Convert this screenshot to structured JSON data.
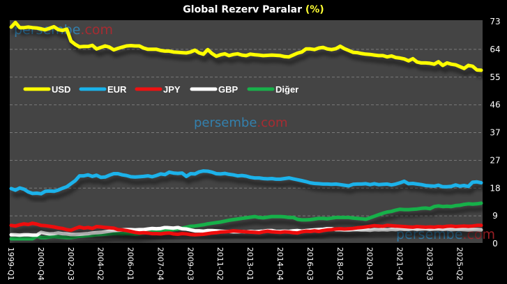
{
  "chart_data": {
    "type": "line",
    "title": "Global Rezerv Paralar",
    "title_unit": "(%)",
    "xlabel": "",
    "ylabel": "",
    "ylim": [
      0,
      73
    ],
    "y_ticks": [
      "0",
      "9",
      "18",
      "27",
      "37",
      "46",
      "55",
      "64",
      "73"
    ],
    "y_tick_values": [
      0,
      9.125,
      18.25,
      27.375,
      36.5,
      45.625,
      54.75,
      63.875,
      73
    ],
    "grid": true,
    "legend_position": "left-upper",
    "x_start": "1999-Q1",
    "x_tick_labels": [
      "1999-Q1",
      "2000-Q4",
      "2002-Q3",
      "2004-Q2",
      "2006-Q1",
      "2007-Q4",
      "2009-Q3",
      "2011-Q2",
      "2013-Q1",
      "2014-Q4",
      "2016-Q3",
      "2018-Q2",
      "2020-Q1",
      "2021-Q4",
      "2023-Q3",
      "2025-Q2"
    ],
    "x_tick_step_quarters": 7,
    "series": [
      {
        "name": "USD",
        "color": "#ffff00",
        "values": [
          71.2,
          72.7,
          71.0,
          71.0,
          71.2,
          71.0,
          70.9,
          70.6,
          70.3,
          70.8,
          71.3,
          70.4,
          70.1,
          70.5,
          66.6,
          65.5,
          64.7,
          64.8,
          64.8,
          65.2,
          64.0,
          64.5,
          65.0,
          64.6,
          63.7,
          64.2,
          64.6,
          65.0,
          65.1,
          65.0,
          65.0,
          64.3,
          63.9,
          63.9,
          63.9,
          63.5,
          63.3,
          63.3,
          63.0,
          62.9,
          62.8,
          62.7,
          63.0,
          63.6,
          62.7,
          62.3,
          63.8,
          62.5,
          61.6,
          62.1,
          62.4,
          61.8,
          62.2,
          62.4,
          62.0,
          61.8,
          62.3,
          62.1,
          62.0,
          61.8,
          61.9,
          62.0,
          61.9,
          61.8,
          61.5,
          61.4,
          62.0,
          62.6,
          63.0,
          64.0,
          64.0,
          63.8,
          64.3,
          64.5,
          64.0,
          63.8,
          64.1,
          64.9,
          64.1,
          63.5,
          62.9,
          62.8,
          62.5,
          62.3,
          62.2,
          62.0,
          61.8,
          61.8,
          61.4,
          61.7,
          61.2,
          61.0,
          60.7,
          60.1,
          60.8,
          59.7,
          59.4,
          59.4,
          59.3,
          59.0,
          59.8,
          58.6,
          59.4,
          59.0,
          58.8,
          58.2,
          57.6,
          58.6,
          58.3,
          57.1,
          57.0
        ]
      },
      {
        "name": "EUR",
        "color": "#1ab2ea",
        "values": [
          18.1,
          17.6,
          18.3,
          17.9,
          17.0,
          16.5,
          16.6,
          16.4,
          17.2,
          17.3,
          17.2,
          17.6,
          18.2,
          18.7,
          19.7,
          20.7,
          22.3,
          22.3,
          22.6,
          22.1,
          22.5,
          21.8,
          21.9,
          22.5,
          23.0,
          23.0,
          22.6,
          22.4,
          22.0,
          21.9,
          22.0,
          22.1,
          22.3,
          22.0,
          22.4,
          22.9,
          22.7,
          23.5,
          23.2,
          23.1,
          23.2,
          22.1,
          23.0,
          22.9,
          23.6,
          23.9,
          23.8,
          23.5,
          23.0,
          22.9,
          23.1,
          22.8,
          22.6,
          22.3,
          22.4,
          22.2,
          21.8,
          21.6,
          21.6,
          21.4,
          21.3,
          21.4,
          21.2,
          21.2,
          21.4,
          21.6,
          21.3,
          21.0,
          20.7,
          20.4,
          20.0,
          19.8,
          19.7,
          19.6,
          19.6,
          19.5,
          19.6,
          19.4,
          19.2,
          19.0,
          19.5,
          19.6,
          19.6,
          19.7,
          19.4,
          19.7,
          19.4,
          19.5,
          19.6,
          19.3,
          19.6,
          20.0,
          20.5,
          19.7,
          19.8,
          19.6,
          19.4,
          19.1,
          19.0,
          18.9,
          19.2,
          18.7,
          18.7,
          18.8,
          19.3,
          18.9,
          19.1,
          18.8,
          20.2,
          20.3,
          20.0
        ]
      },
      {
        "name": "JPY",
        "color": "#ee1111",
        "values": [
          6.0,
          5.8,
          6.2,
          6.5,
          6.3,
          6.7,
          6.4,
          6.0,
          5.9,
          5.7,
          5.5,
          5.2,
          5.0,
          4.6,
          4.4,
          5.0,
          5.5,
          5.1,
          5.3,
          5.0,
          5.6,
          5.5,
          5.3,
          5.2,
          5.1,
          4.6,
          4.5,
          4.3,
          4.0,
          3.7,
          3.5,
          3.6,
          3.5,
          3.3,
          3.3,
          3.2,
          3.4,
          3.5,
          3.2,
          3.1,
          3.3,
          3.2,
          3.0,
          2.9,
          3.0,
          3.1,
          3.3,
          3.5,
          3.6,
          3.8,
          3.9,
          4.0,
          4.2,
          4.1,
          4.0,
          3.9,
          3.8,
          3.7,
          3.6,
          3.9,
          4.1,
          3.9,
          3.8,
          3.7,
          3.9,
          3.8,
          3.6,
          3.5,
          3.9,
          4.1,
          4.0,
          4.2,
          4.0,
          4.3,
          4.5,
          4.6,
          4.8,
          4.9,
          4.8,
          4.9,
          5.0,
          5.2,
          5.3,
          5.5,
          5.7,
          5.9,
          5.8,
          5.7,
          6.0,
          5.9,
          5.8,
          5.7,
          5.6,
          5.5,
          5.4,
          5.6,
          5.5,
          5.4,
          5.5,
          5.4,
          5.6,
          5.5,
          5.7,
          5.8,
          5.6,
          5.7,
          5.8,
          5.7,
          5.8,
          6.0,
          6.0
        ]
      },
      {
        "name": "GBP",
        "color": "#ffffff",
        "values": [
          2.9,
          2.9,
          2.8,
          2.9,
          2.9,
          2.8,
          2.8,
          3.7,
          3.4,
          3.2,
          3.3,
          3.5,
          3.3,
          3.2,
          3.0,
          3.0,
          3.1,
          3.2,
          3.3,
          3.5,
          3.6,
          3.7,
          3.9,
          4.1,
          4.3,
          4.4,
          4.5,
          4.6,
          4.6,
          4.5,
          4.6,
          4.6,
          4.8,
          5.0,
          4.9,
          5.0,
          5.3,
          5.2,
          5.1,
          5.3,
          4.9,
          4.8,
          4.5,
          4.2,
          4.2,
          4.1,
          4.3,
          4.3,
          4.2,
          4.1,
          4.0,
          4.0,
          3.9,
          3.9,
          4.0,
          3.9,
          4.0,
          3.9,
          4.0,
          4.1,
          4.3,
          4.3,
          4.0,
          4.0,
          4.1,
          4.0,
          4.2,
          4.3,
          4.1,
          4.3,
          4.4,
          4.5,
          4.6,
          4.7,
          4.9,
          4.9,
          4.6,
          4.6,
          4.5,
          4.5,
          4.6,
          4.6,
          4.5,
          4.5,
          4.4,
          4.6,
          4.5,
          4.6,
          4.5,
          4.7,
          4.6,
          4.8,
          4.7,
          4.7,
          4.9,
          4.7,
          4.8,
          4.9,
          4.7,
          4.8,
          4.8,
          4.7,
          4.8,
          4.6,
          4.7,
          4.7,
          4.6,
          4.5,
          4.6,
          4.6,
          4.5
        ]
      },
      {
        "name": "Diğer",
        "color": "#18b04a",
        "values": [
          1.6,
          1.6,
          1.6,
          1.6,
          1.6,
          1.6,
          2.4,
          2.0,
          2.0,
          2.2,
          2.3,
          2.2,
          2.1,
          2.0,
          2.0,
          2.2,
          2.4,
          2.5,
          2.6,
          2.7,
          2.9,
          3.0,
          3.1,
          3.2,
          3.3,
          3.3,
          3.2,
          3.3,
          3.2,
          3.1,
          3.3,
          3.5,
          3.6,
          3.8,
          4.0,
          4.2,
          4.3,
          4.4,
          4.6,
          4.8,
          5.1,
          5.4,
          5.7,
          5.8,
          6.0,
          6.2,
          6.5,
          6.7,
          6.9,
          7.1,
          7.4,
          7.7,
          7.9,
          8.1,
          8.3,
          8.5,
          8.7,
          8.9,
          8.6,
          8.5,
          8.7,
          8.9,
          8.9,
          8.9,
          8.8,
          8.6,
          8.6,
          8.0,
          7.8,
          7.8,
          7.9,
          8.1,
          8.3,
          8.3,
          8.2,
          8.4,
          8.6,
          8.6,
          8.6,
          8.6,
          8.4,
          8.3,
          8.2,
          8.0,
          8.5,
          9.0,
          9.5,
          10.0,
          10.4,
          10.6,
          11.0,
          11.3,
          11.2,
          11.2,
          11.3,
          11.4,
          11.6,
          11.7,
          11.5,
          12.2,
          12.4,
          12.2,
          12.3,
          12.2,
          12.5,
          12.6,
          12.9,
          13.1,
          13.0,
          13.1,
          13.3
        ]
      }
    ],
    "watermarks": [
      {
        "text_a": "persembe",
        "text_b": ".com",
        "position": "top-left"
      },
      {
        "text_a": "persembe",
        "text_b": ".com",
        "position": "center"
      },
      {
        "text_a": "persembe",
        "text_b": ".com",
        "position": "bottom-right"
      }
    ]
  },
  "colors": {
    "background": "#000000",
    "plot_background": "#444444",
    "gridline": "#7a7a7a",
    "watermark_a": "#2f8fc8",
    "watermark_b": "#c0262d"
  }
}
